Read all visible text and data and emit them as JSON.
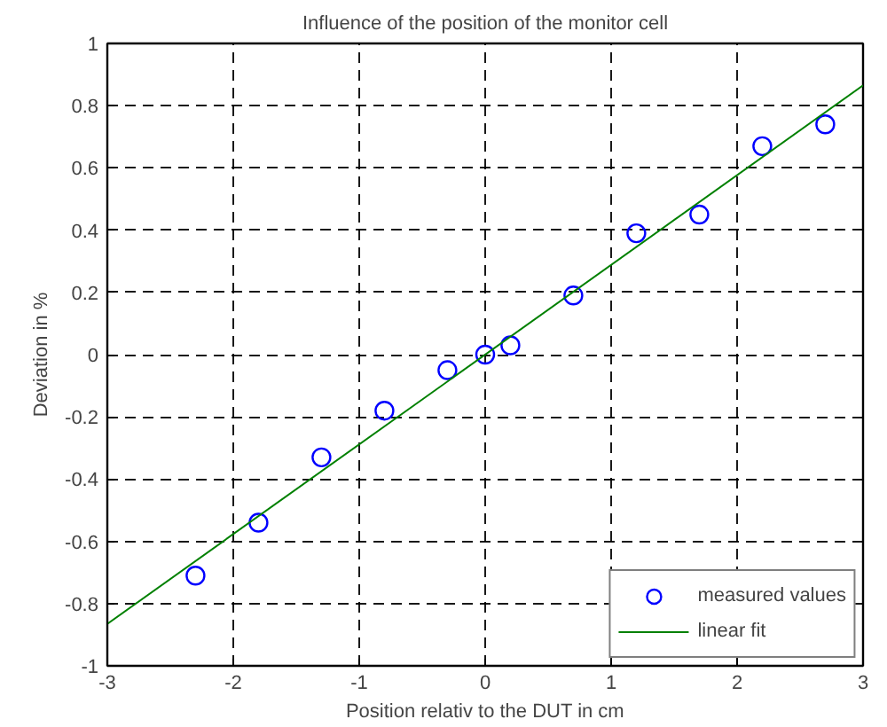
{
  "chart_data": {
    "type": "scatter",
    "title": "Influence of the position of the monitor cell",
    "xlabel": "Position relativ to the DUT in cm",
    "ylabel": "Deviation in %",
    "xlim": [
      -3,
      3
    ],
    "ylim": [
      -1,
      1
    ],
    "xticks": [
      -3,
      -2,
      -1,
      0,
      1,
      2,
      3
    ],
    "yticks": [
      -1,
      -0.8,
      -0.6,
      -0.4,
      -0.2,
      0,
      0.2,
      0.4,
      0.6,
      0.8,
      1
    ],
    "grid": true,
    "legend": "bottom right",
    "series": [
      {
        "name": "measured values",
        "marker": "circle",
        "color": "#0000ff",
        "x": [
          -2.3,
          -1.8,
          -1.3,
          -0.8,
          -0.3,
          0,
          0.2,
          0.7,
          1.2,
          1.7,
          2.2,
          2.7
        ],
        "values": [
          -0.71,
          -0.54,
          -0.33,
          -0.18,
          -0.05,
          0,
          0.03,
          0.19,
          0.39,
          0.45,
          0.67,
          0.74
        ]
      },
      {
        "name": "linear fit",
        "type": "line",
        "color": "#008000",
        "line_style": "solid",
        "x": [
          -3,
          3
        ],
        "values": [
          -0.865,
          0.865
        ]
      }
    ]
  }
}
